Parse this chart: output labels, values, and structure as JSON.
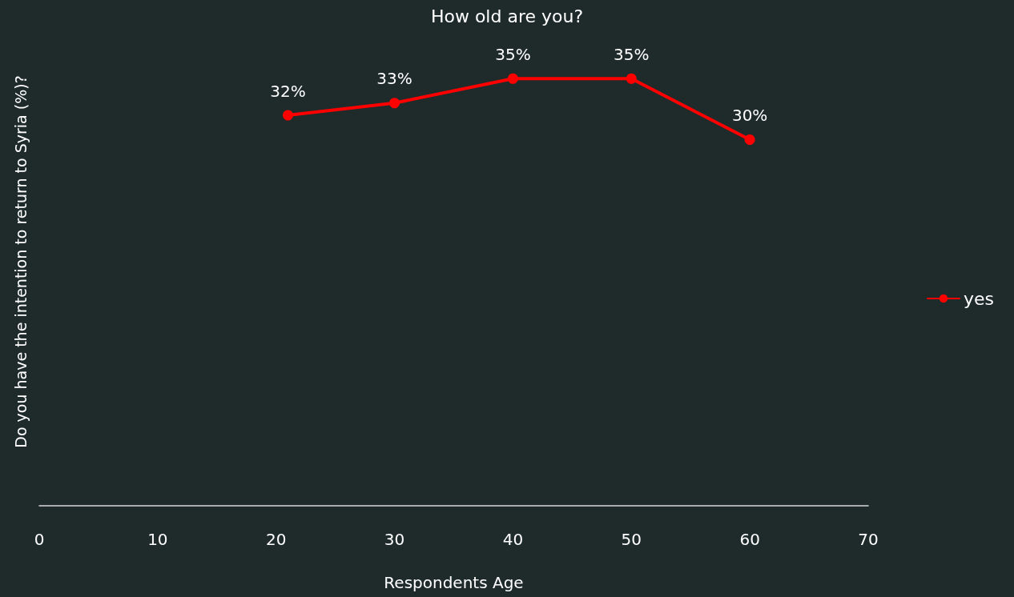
{
  "chart_data": {
    "type": "line",
    "title": "How old are you?",
    "xlabel": "Respondents Age",
    "ylabel": "Do you have the intention to return to Syria (%)?",
    "x": [
      21,
      30,
      40,
      50,
      60
    ],
    "series": [
      {
        "name": "yes",
        "color": "#ff0000",
        "values": [
          32,
          33,
          35,
          35,
          30
        ],
        "value_labels": [
          "32%",
          "33%",
          "35%",
          "35%",
          "30%"
        ]
      }
    ],
    "xlim": [
      0,
      70
    ],
    "xticks": [
      0,
      10,
      20,
      30,
      40,
      50,
      60,
      70
    ],
    "tick_labels": "x",
    "grid": false,
    "legend": "right",
    "marker": "circle",
    "line_style": "solid"
  }
}
